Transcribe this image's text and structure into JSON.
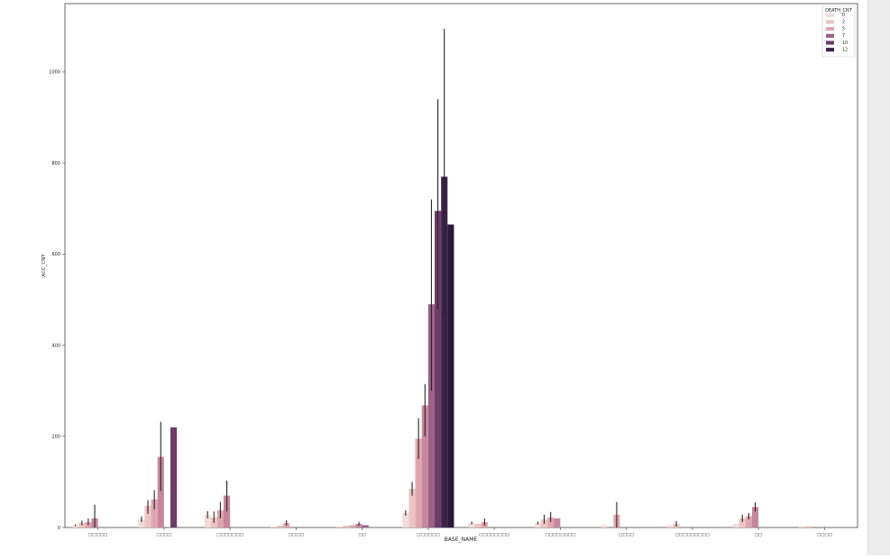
{
  "chart_data": {
    "type": "bar",
    "xlabel": "BASE_NAME",
    "ylabel": "ACC_CNT",
    "ylim": [
      0,
      1150
    ],
    "yticks": [
      0,
      200,
      400,
      600,
      800,
      1000
    ],
    "categories": [
      "□□□□□",
      "□□□□",
      "□□□□□□□",
      "□□□□",
      "□□",
      "□□□□□□",
      "□□□□□□□□",
      "□□□□□□□□",
      "□□□□",
      "□□□□□□□□□",
      "□□",
      "□□□□"
    ],
    "legend": {
      "title": "DEATH_CNT",
      "position": "upper-right",
      "entries": [
        "0",
        "2",
        "5",
        "7",
        "10",
        "12"
      ]
    },
    "colors": [
      "#f1dcd9",
      "#ebc5c2",
      "#dfa6b0",
      "#c6869e",
      "#9c6185",
      "#6b3c68",
      "#3b2148",
      "#2a1837"
    ],
    "error_bar_color": "#262626",
    "series": [
      {
        "values": [
          5,
          18,
          28,
          2,
          2,
          32,
          10,
          10,
          5,
          5,
          8,
          3
        ]
      },
      {
        "values": [
          10,
          48,
          22,
          4,
          4,
          85,
          8,
          18,
          0,
          8,
          20,
          3
        ]
      },
      {
        "values": [
          12,
          62,
          38,
          10,
          5,
          195,
          12,
          22,
          28,
          0,
          25,
          0
        ]
      },
      {
        "values": [
          20,
          155,
          70,
          0,
          8,
          268,
          0,
          20,
          0,
          0,
          45,
          0
        ]
      },
      {
        "values": [
          0,
          0,
          0,
          0,
          5,
          490,
          0,
          0,
          0,
          0,
          0,
          0
        ]
      },
      {
        "values": [
          0,
          220,
          0,
          0,
          0,
          695,
          0,
          0,
          0,
          0,
          0,
          0
        ]
      },
      {
        "values": [
          0,
          0,
          0,
          0,
          0,
          770,
          0,
          0,
          0,
          0,
          0,
          0
        ]
      },
      {
        "values": [
          0,
          0,
          0,
          0,
          0,
          665,
          0,
          0,
          0,
          0,
          0,
          0
        ]
      }
    ],
    "error_bars": [
      {
        "series": 0,
        "category": 0,
        "low": 3,
        "high": 7
      },
      {
        "series": 1,
        "category": 0,
        "low": 5,
        "high": 15
      },
      {
        "series": 2,
        "category": 0,
        "low": 5,
        "high": 20
      },
      {
        "series": 3,
        "category": 0,
        "low": 0,
        "high": 50
      },
      {
        "series": 0,
        "category": 1,
        "low": 12,
        "high": 24
      },
      {
        "series": 1,
        "category": 1,
        "low": 30,
        "high": 60
      },
      {
        "series": 2,
        "category": 1,
        "low": 40,
        "high": 82
      },
      {
        "series": 3,
        "category": 1,
        "low": 80,
        "high": 232
      },
      {
        "series": 0,
        "category": 2,
        "low": 20,
        "high": 36
      },
      {
        "series": 1,
        "category": 2,
        "low": 10,
        "high": 35
      },
      {
        "series": 2,
        "category": 2,
        "low": 20,
        "high": 56
      },
      {
        "series": 3,
        "category": 2,
        "low": 35,
        "high": 103
      },
      {
        "series": 2,
        "category": 3,
        "low": 4,
        "high": 16
      },
      {
        "series": 3,
        "category": 4,
        "low": 4,
        "high": 12
      },
      {
        "series": 0,
        "category": 5,
        "low": 26,
        "high": 38
      },
      {
        "series": 1,
        "category": 5,
        "low": 70,
        "high": 100
      },
      {
        "series": 2,
        "category": 5,
        "low": 150,
        "high": 240
      },
      {
        "series": 3,
        "category": 5,
        "low": 200,
        "high": 315
      },
      {
        "series": 4,
        "category": 5,
        "low": 300,
        "high": 720
      },
      {
        "series": 5,
        "category": 5,
        "low": 480,
        "high": 940
      },
      {
        "series": 6,
        "category": 5,
        "low": 460,
        "high": 1095
      },
      {
        "series": 0,
        "category": 6,
        "low": 7,
        "high": 13
      },
      {
        "series": 2,
        "category": 6,
        "low": 4,
        "high": 20
      },
      {
        "series": 0,
        "category": 7,
        "low": 7,
        "high": 13
      },
      {
        "series": 1,
        "category": 7,
        "low": 8,
        "high": 28
      },
      {
        "series": 2,
        "category": 7,
        "low": 12,
        "high": 34
      },
      {
        "series": 2,
        "category": 8,
        "low": 0,
        "high": 56
      },
      {
        "series": 1,
        "category": 9,
        "low": 2,
        "high": 14
      },
      {
        "series": 1,
        "category": 10,
        "low": 12,
        "high": 28
      },
      {
        "series": 2,
        "category": 10,
        "low": 18,
        "high": 32
      },
      {
        "series": 3,
        "category": 10,
        "low": 35,
        "high": 55
      }
    ],
    "grid": false
  }
}
